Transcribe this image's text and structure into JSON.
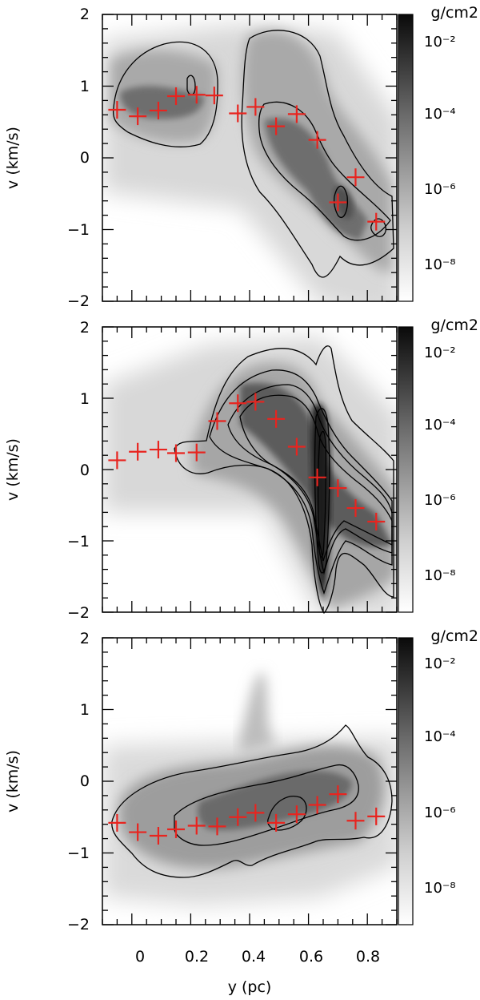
{
  "chart_data": [
    {
      "type": "scatter",
      "panel": "top",
      "ylabel": "v (km/s)",
      "xlim": [
        -0.1,
        0.9
      ],
      "ylim": [
        -2,
        2
      ],
      "y_ticks": [
        "2",
        "1",
        "0",
        "−1",
        "−2"
      ],
      "colorbar": {
        "unit": "g/cm2",
        "tick_labels": [
          "10⁻²",
          "10⁻⁴",
          "10⁻⁶",
          "10⁻⁸"
        ],
        "scale": "log"
      },
      "marker": {
        "symbol": "+",
        "color": "#e8241f"
      },
      "points": [
        {
          "x": -0.05,
          "y": 0.67
        },
        {
          "x": 0.02,
          "y": 0.58
        },
        {
          "x": 0.09,
          "y": 0.66
        },
        {
          "x": 0.15,
          "y": 0.86
        },
        {
          "x": 0.22,
          "y": 0.88
        },
        {
          "x": 0.28,
          "y": 0.87
        },
        {
          "x": 0.36,
          "y": 0.62
        },
        {
          "x": 0.42,
          "y": 0.71
        },
        {
          "x": 0.49,
          "y": 0.44
        },
        {
          "x": 0.56,
          "y": 0.61
        },
        {
          "x": 0.63,
          "y": 0.25
        },
        {
          "x": 0.7,
          "y": -0.62
        },
        {
          "x": 0.76,
          "y": -0.27
        },
        {
          "x": 0.83,
          "y": -0.89
        }
      ]
    },
    {
      "type": "scatter",
      "panel": "middle",
      "ylabel": "v (km/s)",
      "xlim": [
        -0.1,
        0.9
      ],
      "ylim": [
        -2,
        2
      ],
      "y_ticks": [
        "2",
        "1",
        "0",
        "−1",
        "−2"
      ],
      "colorbar": {
        "unit": "g/cm2",
        "tick_labels": [
          "10⁻²",
          "10⁻⁴",
          "10⁻⁶",
          "10⁻⁸"
        ],
        "scale": "log"
      },
      "marker": {
        "symbol": "+",
        "color": "#e8241f"
      },
      "points": [
        {
          "x": -0.05,
          "y": 0.13
        },
        {
          "x": 0.02,
          "y": 0.25
        },
        {
          "x": 0.09,
          "y": 0.28
        },
        {
          "x": 0.15,
          "y": 0.23
        },
        {
          "x": 0.22,
          "y": 0.24
        },
        {
          "x": 0.29,
          "y": 0.68
        },
        {
          "x": 0.36,
          "y": 0.93
        },
        {
          "x": 0.42,
          "y": 0.95
        },
        {
          "x": 0.49,
          "y": 0.71
        },
        {
          "x": 0.56,
          "y": 0.32
        },
        {
          "x": 0.63,
          "y": -0.11
        },
        {
          "x": 0.7,
          "y": -0.26
        },
        {
          "x": 0.76,
          "y": -0.54
        },
        {
          "x": 0.83,
          "y": -0.73
        }
      ]
    },
    {
      "type": "scatter",
      "panel": "bottom",
      "ylabel": "v (km/s)",
      "xlabel": "y (pc)",
      "xlim": [
        -0.1,
        0.9
      ],
      "ylim": [
        -2,
        2
      ],
      "x_ticks": [
        "0",
        "0.2",
        "0.4",
        "0.6",
        "0.8"
      ],
      "y_ticks": [
        "2",
        "1",
        "0",
        "−1",
        "−2"
      ],
      "colorbar": {
        "unit": "g/cm2",
        "tick_labels": [
          "10⁻²",
          "10⁻⁴",
          "10⁻⁶",
          "10⁻⁸"
        ],
        "scale": "log"
      },
      "marker": {
        "symbol": "+",
        "color": "#e8241f"
      },
      "points": [
        {
          "x": -0.05,
          "y": -0.58
        },
        {
          "x": 0.02,
          "y": -0.71
        },
        {
          "x": 0.09,
          "y": -0.76
        },
        {
          "x": 0.15,
          "y": -0.67
        },
        {
          "x": 0.22,
          "y": -0.62
        },
        {
          "x": 0.29,
          "y": -0.63
        },
        {
          "x": 0.36,
          "y": -0.5
        },
        {
          "x": 0.42,
          "y": -0.44
        },
        {
          "x": 0.49,
          "y": -0.58
        },
        {
          "x": 0.56,
          "y": -0.46
        },
        {
          "x": 0.63,
          "y": -0.33
        },
        {
          "x": 0.7,
          "y": -0.18
        },
        {
          "x": 0.76,
          "y": -0.55
        },
        {
          "x": 0.83,
          "y": -0.49
        }
      ]
    }
  ]
}
